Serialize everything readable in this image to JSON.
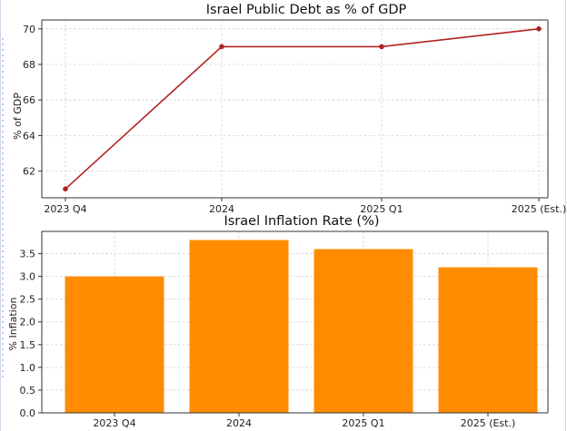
{
  "colors": {
    "line": "#b22222",
    "bar": "#ff8c00"
  },
  "chart_data": [
    {
      "type": "line",
      "title": "Israel Public Debt as % of GDP",
      "xlabel": "",
      "ylabel": "% of GDP",
      "categories": [
        "2023 Q4",
        "2024",
        "2025 Q1",
        "2025 (Est.)"
      ],
      "values": [
        61,
        69,
        69,
        70
      ],
      "yticks": [
        "62",
        "64",
        "66",
        "68",
        "70"
      ],
      "ylim": [
        60.5,
        70.5
      ],
      "grid": true
    },
    {
      "type": "bar",
      "title": "Israel Inflation Rate (%)",
      "xlabel": "",
      "ylabel": "% Inflation",
      "categories": [
        "2023 Q4",
        "2024",
        "2025 Q1",
        "2025 (Est.)"
      ],
      "values": [
        3.0,
        3.8,
        3.6,
        3.2
      ],
      "yticks": [
        "0.0",
        "0.5",
        "1.0",
        "1.5",
        "2.0",
        "2.5",
        "3.0",
        "3.5"
      ],
      "ylim": [
        0,
        3.99
      ],
      "grid": true
    }
  ]
}
